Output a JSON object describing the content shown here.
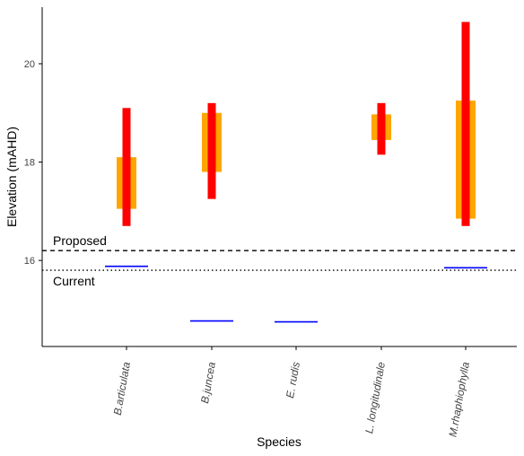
{
  "chart_data": {
    "type": "range",
    "xlabel": "Species",
    "ylabel": "Elevation (mAHD)",
    "categories": [
      "B.articulata",
      "B.juncea",
      "E. rudis",
      "L. longitudinale",
      "M.rhaphiophylla"
    ],
    "ylim": [
      14.25,
      21.15
    ],
    "yticks": [
      16,
      18,
      20
    ],
    "ytick_labels": [
      "16",
      "18",
      "20"
    ],
    "grid": false,
    "series": [
      {
        "color": "#FFA500",
        "ranges": [
          [
            17.05,
            18.1
          ],
          [
            17.8,
            19.0
          ],
          null,
          [
            18.45,
            18.97
          ],
          [
            16.85,
            19.25
          ]
        ]
      },
      {
        "color": "#FF0000",
        "ranges": [
          [
            16.7,
            19.1
          ],
          [
            17.25,
            19.2
          ],
          null,
          [
            18.15,
            19.2
          ],
          [
            16.7,
            20.85
          ]
        ]
      },
      {
        "color": "#0000FF",
        "points": [
          15.88,
          14.77,
          14.75,
          null,
          15.85
        ]
      }
    ],
    "reference_lines": [
      {
        "label": "Proposed",
        "value": 16.2,
        "style": "dashed"
      },
      {
        "label": "Current",
        "value": 15.8,
        "style": "dotted"
      }
    ]
  }
}
